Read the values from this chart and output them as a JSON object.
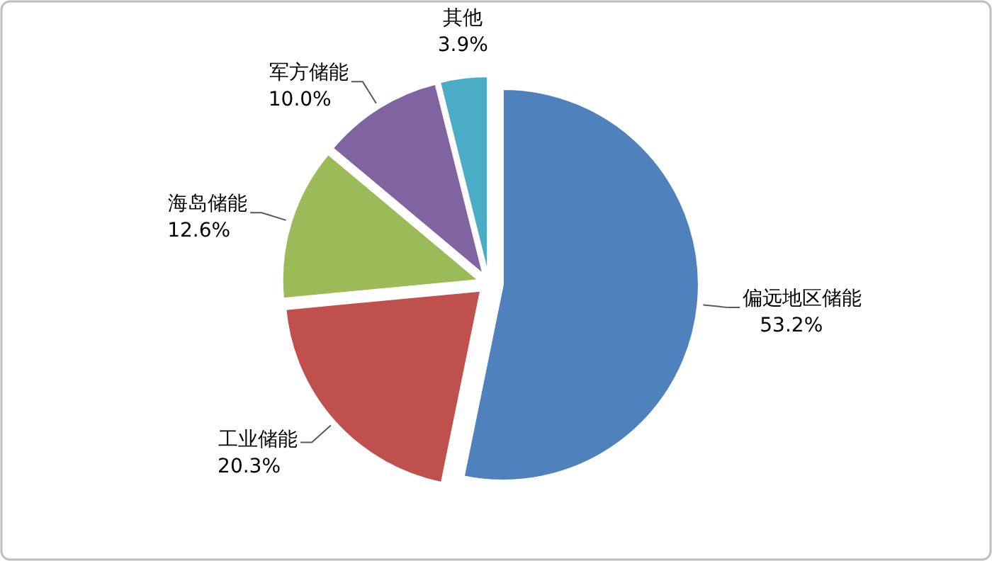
{
  "chart_data": {
    "type": "pie",
    "categories": [
      "偏远地区储能",
      "工业储能",
      "海岛储能",
      "军方储能",
      "其他"
    ],
    "values": [
      53.2,
      20.3,
      12.6,
      10.0,
      3.9
    ],
    "colors": [
      "#4f81bd",
      "#c0504d",
      "#9bbb59",
      "#8064a2",
      "#4bacc6"
    ],
    "value_labels": [
      "53.2%",
      "20.3%",
      "12.6%",
      "10.0%",
      "3.9%"
    ]
  }
}
